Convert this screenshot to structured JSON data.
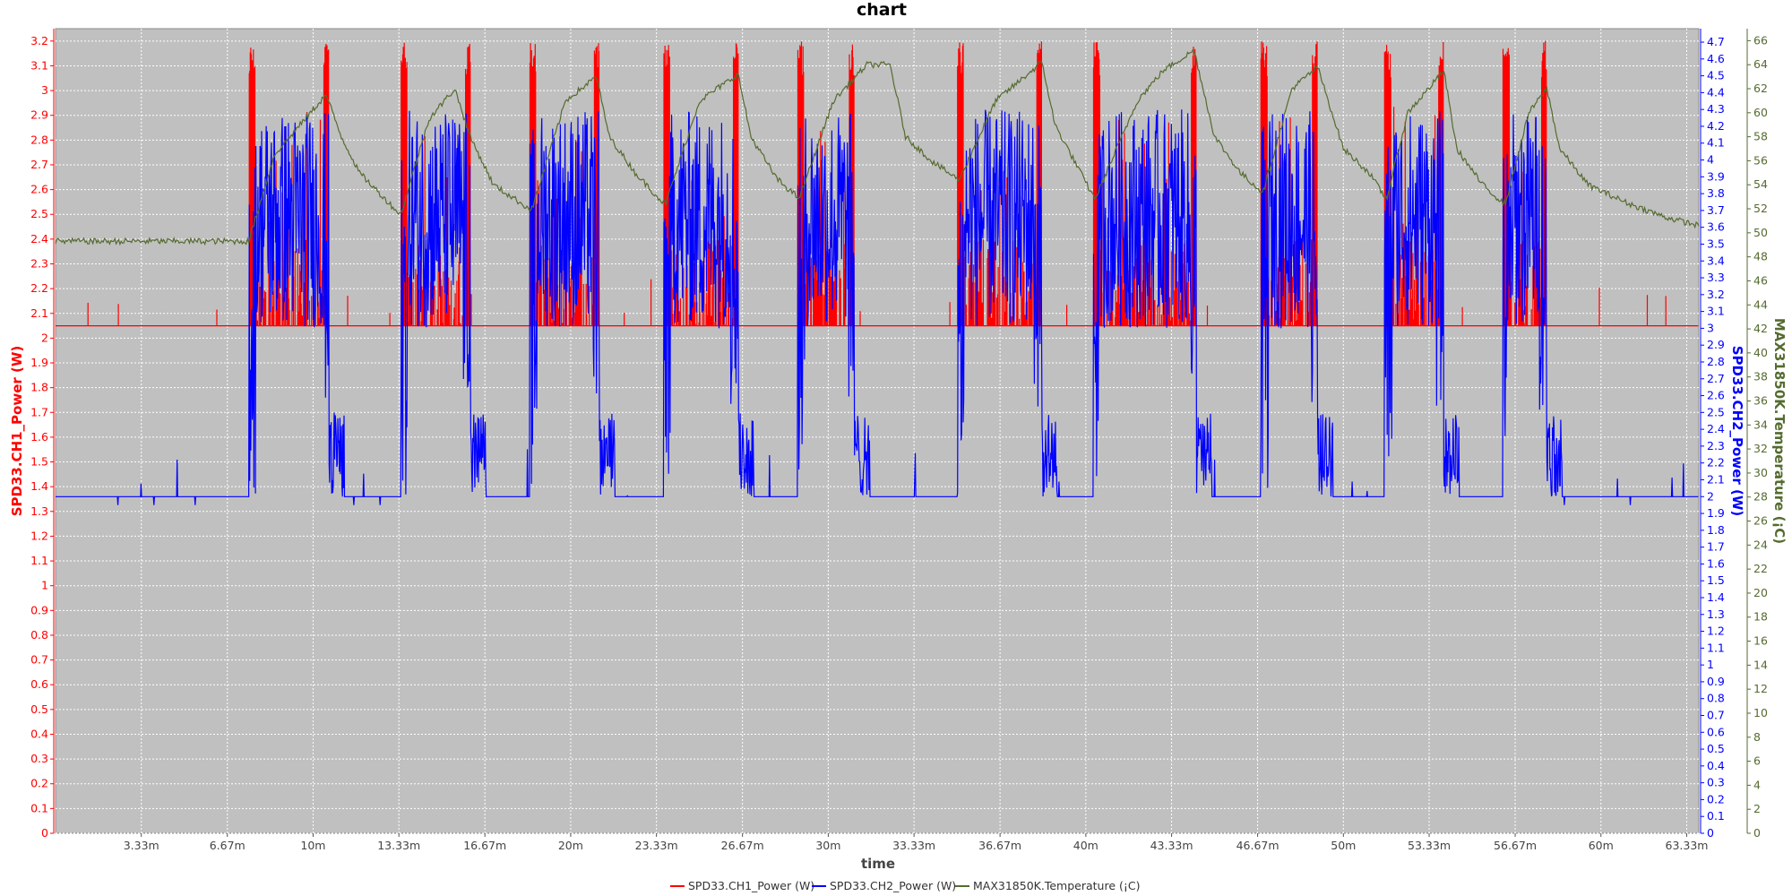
{
  "chart_data": {
    "type": "line",
    "title": "chart",
    "xlabel": "time",
    "x_unit_label_suffix": "m",
    "xlim": [
      0,
      63.8
    ],
    "x_ticks": [
      "3.33m",
      "6.67m",
      "10m",
      "13.33m",
      "16.67m",
      "20m",
      "23.33m",
      "26.67m",
      "30m",
      "33.33m",
      "36.67m",
      "40m",
      "43.33m",
      "46.67m",
      "50m",
      "53.33m",
      "56.67m",
      "60m",
      "63.33m"
    ],
    "axes": {
      "left": {
        "label": "SPD33.CH1_Power (W)",
        "color": "#ff0000",
        "ylim": [
          0,
          3.25
        ],
        "ticks": [
          "0",
          "0.1",
          "0.2",
          "0.3",
          "0.4",
          "0.5",
          "0.6",
          "0.7",
          "0.8",
          "0.9",
          "1",
          "1.1",
          "1.2",
          "1.3",
          "1.4",
          "1.5",
          "1.6",
          "1.7",
          "1.8",
          "1.9",
          "2",
          "2.1",
          "2.2",
          "2.3",
          "2.4",
          "2.5",
          "2.6",
          "2.7",
          "2.8",
          "2.9",
          "3",
          "3.1",
          "3.2"
        ]
      },
      "right1": {
        "label": "SPD33.CH2_Power (W)",
        "color": "#0000ff",
        "ylim": [
          0,
          4.78
        ],
        "ticks": [
          "0",
          "0.1",
          "0.2",
          "0.3",
          "0.4",
          "0.5",
          "0.6",
          "0.7",
          "0.8",
          "0.9",
          "1",
          "1.1",
          "1.2",
          "1.3",
          "1.4",
          "1.5",
          "1.6",
          "1.7",
          "1.8",
          "1.9",
          "2",
          "2.1",
          "2.2",
          "2.3",
          "2.4",
          "2.5",
          "2.6",
          "2.7",
          "2.8",
          "2.9",
          "3",
          "3.1",
          "3.2",
          "3.3",
          "3.4",
          "3.5",
          "3.6",
          "3.7",
          "3.8",
          "3.9",
          "4",
          "4.1",
          "4.2",
          "4.3",
          "4.4",
          "4.5",
          "4.6",
          "4.7"
        ]
      },
      "right2": {
        "label": "MAX31850K.Temperature (¡C)",
        "color": "#556b2f",
        "ylim": [
          0,
          67
        ],
        "ticks": [
          "0",
          "2",
          "4",
          "6",
          "8",
          "10",
          "12",
          "14",
          "16",
          "18",
          "20",
          "22",
          "24",
          "26",
          "28",
          "30",
          "32",
          "34",
          "36",
          "38",
          "40",
          "42",
          "44",
          "46",
          "48",
          "50",
          "52",
          "54",
          "56",
          "58",
          "60",
          "62",
          "64",
          "66"
        ]
      }
    },
    "grid": true,
    "legend_position": "bottom-center",
    "active_periods": [
      [
        7.5,
        10.6
      ],
      [
        13.4,
        16.1
      ],
      [
        18.4,
        21.1
      ],
      [
        23.6,
        26.5
      ],
      [
        28.8,
        31.0
      ],
      [
        35.0,
        38.3
      ],
      [
        40.3,
        44.3
      ],
      [
        46.8,
        49.0
      ],
      [
        51.6,
        53.9
      ],
      [
        56.2,
        57.9
      ]
    ],
    "series": [
      {
        "name": "SPD33.CH1_Power (W)",
        "axis": "left",
        "color": "#ff0000",
        "description_values": {
          "baseline": 2.05,
          "active_range": [
            2.05,
            3.2
          ],
          "spike_max": 3.25
        }
      },
      {
        "name": "SPD33.CH2_Power (W)",
        "axis": "right1",
        "color": "#0000ff",
        "description_values": {
          "baseline": 2.0,
          "active_range": [
            3.0,
            4.3
          ],
          "dip_min": 2.5
        }
      },
      {
        "name": "MAX31850K.Temperature (¡C)",
        "axis": "right2",
        "color": "#556b2f",
        "points": [
          [
            0,
            49.3
          ],
          [
            7.5,
            49.3
          ],
          [
            8.5,
            56.5
          ],
          [
            10.5,
            61.5
          ],
          [
            11.1,
            58
          ],
          [
            11.8,
            55
          ],
          [
            13.3,
            51.7
          ],
          [
            13.4,
            51.5
          ],
          [
            14.5,
            59.5
          ],
          [
            15.5,
            62
          ],
          [
            16.1,
            58
          ],
          [
            17.0,
            54
          ],
          [
            18.4,
            52
          ],
          [
            18.5,
            52
          ],
          [
            19.8,
            61
          ],
          [
            21.0,
            63
          ],
          [
            21.5,
            58
          ],
          [
            22.5,
            55
          ],
          [
            23.6,
            52.5
          ],
          [
            23.7,
            52.5
          ],
          [
            25.0,
            61
          ],
          [
            26.5,
            63.2
          ],
          [
            27.0,
            58
          ],
          [
            28.0,
            54.5
          ],
          [
            28.8,
            53
          ],
          [
            28.9,
            53
          ],
          [
            30.2,
            61
          ],
          [
            31.5,
            64
          ],
          [
            32.4,
            64
          ],
          [
            33.0,
            58
          ],
          [
            34.0,
            56
          ],
          [
            35.0,
            54.5
          ],
          [
            35.1,
            54.5
          ],
          [
            36.5,
            61
          ],
          [
            38.3,
            64.2
          ],
          [
            38.8,
            59
          ],
          [
            40.3,
            53
          ],
          [
            40.4,
            53
          ],
          [
            42.0,
            61
          ],
          [
            43.0,
            63.5
          ],
          [
            44.2,
            65.2
          ],
          [
            45.0,
            58
          ],
          [
            46.0,
            55
          ],
          [
            46.8,
            53.5
          ],
          [
            46.9,
            53.5
          ],
          [
            48.0,
            62
          ],
          [
            49.0,
            63.8
          ],
          [
            50.0,
            57
          ],
          [
            51.0,
            55
          ],
          [
            51.6,
            53
          ],
          [
            51.7,
            53
          ],
          [
            52.5,
            60
          ],
          [
            53.9,
            63.5
          ],
          [
            54.4,
            57
          ],
          [
            55.4,
            54
          ],
          [
            56.2,
            52.5
          ],
          [
            56.3,
            52.5
          ],
          [
            57.2,
            60
          ],
          [
            57.9,
            62
          ],
          [
            58.4,
            57
          ],
          [
            59.5,
            54
          ],
          [
            61.0,
            52.5
          ],
          [
            62.5,
            51.3
          ],
          [
            63.8,
            50.6
          ]
        ]
      }
    ]
  }
}
